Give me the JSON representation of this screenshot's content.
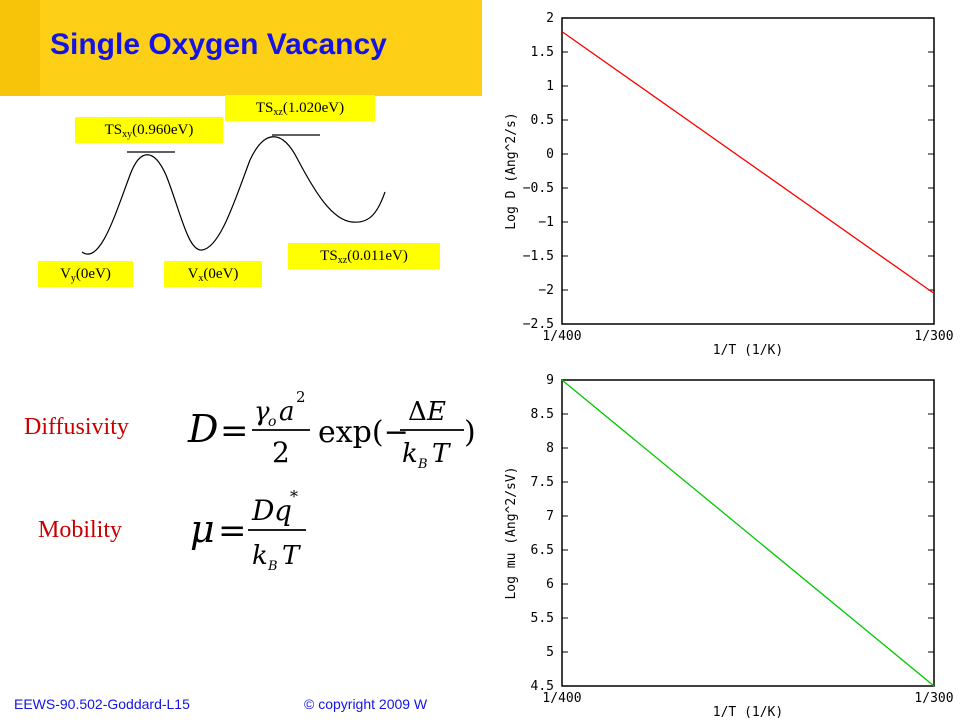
{
  "title": "Single Oxygen Vacancy",
  "energy_labels": {
    "ts_xy": {
      "main": "TS",
      "sub": "xy",
      "value": "(0.960eV)"
    },
    "ts_xz_high": {
      "main": "TS",
      "sub": "xz",
      "value": "(1.020eV)"
    },
    "vy": {
      "main": "V",
      "sub": "y",
      "value": "(0eV)"
    },
    "vx": {
      "main": "V",
      "sub": "x",
      "value": "(0eV)"
    },
    "ts_xz_low": {
      "main": "TS",
      "sub": "xz",
      "value": "(0.011eV)"
    }
  },
  "diffusivity_label": "Diffusivity",
  "mobility_label": "Mobility",
  "footer": {
    "left": "EEWS-90.502-Goddard-L15",
    "right": "© copyright 2009 W"
  },
  "colors": {
    "title": "#1414e6",
    "label_bg": "#ffff00",
    "header_bg": "#FDD017",
    "word": "#c80000",
    "d_line": "#ff0000",
    "mu_line": "#00c800"
  },
  "chart_data": [
    {
      "type": "line",
      "x_ticks": [
        "1/400",
        "1/300"
      ],
      "xlabel": "1/T (1/K)",
      "ylabel": "Log D (Ang^2/s)",
      "ylim": [
        -2.5,
        2
      ],
      "y_ticks": [
        "2",
        "1.5",
        "1",
        "0.5",
        "0",
        "−0.5",
        "−1",
        "−1.5",
        "−2",
        "−2.5"
      ],
      "x": [
        0,
        1
      ],
      "y": [
        1.8,
        -2.05
      ],
      "color": "#ff0000"
    },
    {
      "type": "line",
      "x_ticks": [
        "1/400",
        "1/300"
      ],
      "xlabel": "1/T (1/K)",
      "ylabel": "Log mu (Ang^2/sV)",
      "ylim": [
        4.5,
        9
      ],
      "y_ticks": [
        "9",
        "8.5",
        "8",
        "7.5",
        "7",
        "6.5",
        "6",
        "5.5",
        "5",
        "4.5"
      ],
      "x": [
        0,
        1
      ],
      "y": [
        9,
        4.5
      ],
      "color": "#00c800"
    }
  ]
}
